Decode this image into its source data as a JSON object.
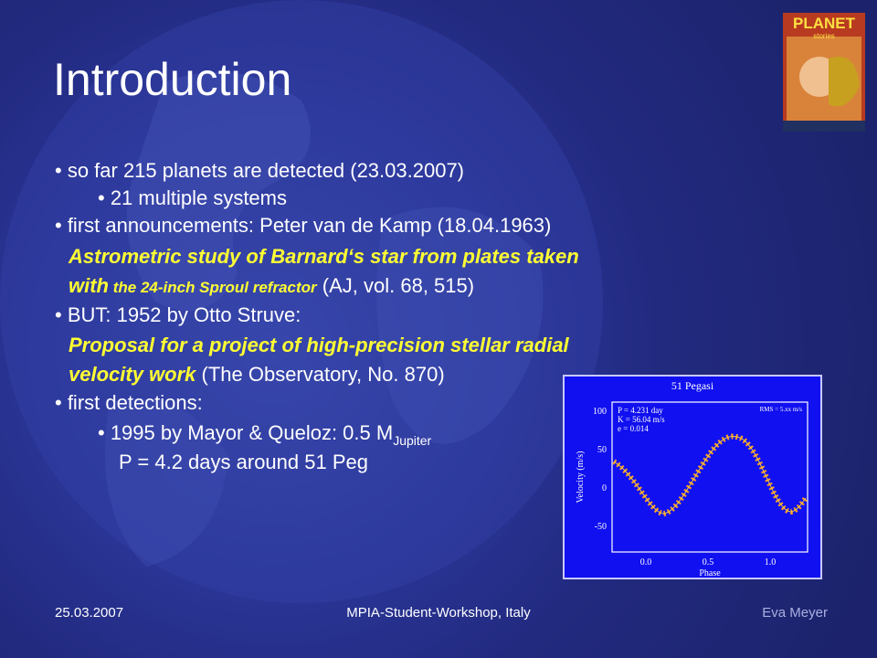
{
  "title": "Introduction",
  "lines": [
    [
      {
        "text": "• so far 215 planets are detected (23.03.2007)",
        "style": "plain"
      }
    ],
    [
      {
        "text": "• 21 multiple systems",
        "style": "plain"
      }
    ],
    [
      {
        "text": "• first announcements: Peter van de Kamp (18.04.1963)",
        "style": "plain"
      }
    ],
    [
      {
        "text": "Astrometric study of Barnard‘s star from plates taken",
        "style": "highlight"
      }
    ],
    [
      {
        "text": "with",
        "style": "highlight"
      },
      {
        "text": " the 24-inch Sproul refractor",
        "style": "highlight-small"
      },
      {
        "text": " (AJ, vol. 68, 515)",
        "style": "plain"
      }
    ],
    [
      {
        "text": "• BUT: 1952 by Otto Struve:",
        "style": "plain"
      }
    ],
    [
      {
        "text": "Proposal for a project of high-precision stellar radial",
        "style": "highlight"
      }
    ],
    [
      {
        "text": "velocity work",
        "style": "highlight"
      },
      {
        "text": " (The Observatory, No. 870)",
        "style": "plain"
      }
    ],
    [
      {
        "text": "• first detections:",
        "style": "plain"
      }
    ],
    [
      {
        "text": "• 1995 by Mayor & Queloz: 0.5 M",
        "style": "plain"
      },
      {
        "text": "Jupiter",
        "style": "subscript"
      }
    ],
    [
      {
        "text": "P = 4.2 days around 51 Peg",
        "style": "plain"
      }
    ]
  ],
  "figure": {
    "title": "51 Pegasi",
    "annotations": [
      "P = 4.231 day",
      "K = 56.04 m/s",
      "e = 0.014"
    ],
    "rms": "RMS = 5.xx m/s",
    "y_label": "Velocity (m/s)",
    "x_label": "Phase",
    "y_tick_labels": [
      "100",
      "50",
      "0",
      "-50"
    ],
    "x_tick_labels": [
      "0.0",
      "0.5",
      "1.0"
    ]
  },
  "cover": {
    "title": "PLANET",
    "subtitle": "stories"
  },
  "footer": {
    "date": "25.03.2007",
    "event": "MPIA-Student-Workshop, Italy",
    "author": "Eva Meyer"
  }
}
